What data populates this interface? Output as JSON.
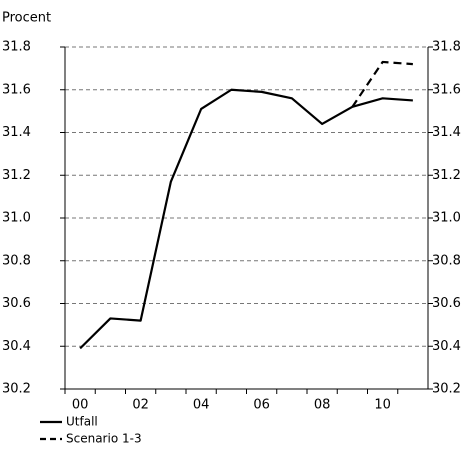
{
  "chart_data": {
    "type": "line",
    "y_label": "Procent",
    "categories": [
      "00",
      null,
      "02",
      null,
      "04",
      null,
      "06",
      null,
      "08",
      null,
      "10",
      null
    ],
    "series": [
      {
        "name": "Utfall",
        "color": "#000000",
        "dash": false,
        "values": [
          30.39,
          30.53,
          30.52,
          31.17,
          31.51,
          31.6,
          31.59,
          31.56,
          31.44,
          31.52,
          31.56,
          31.55
        ]
      },
      {
        "name": "Scenario 1-3",
        "color": "#000000",
        "dash": true,
        "values": [
          null,
          null,
          null,
          null,
          null,
          null,
          null,
          null,
          null,
          31.52,
          31.73,
          31.72
        ]
      }
    ],
    "ylim": [
      30.2,
      31.8
    ],
    "yticks": [
      30.2,
      30.4,
      30.6,
      30.8,
      {
        "value": 31,
        "label": "31.0"
      },
      31.2,
      31.4,
      31.6,
      31.8
    ],
    "grid": true,
    "legend": "bottom-left"
  }
}
